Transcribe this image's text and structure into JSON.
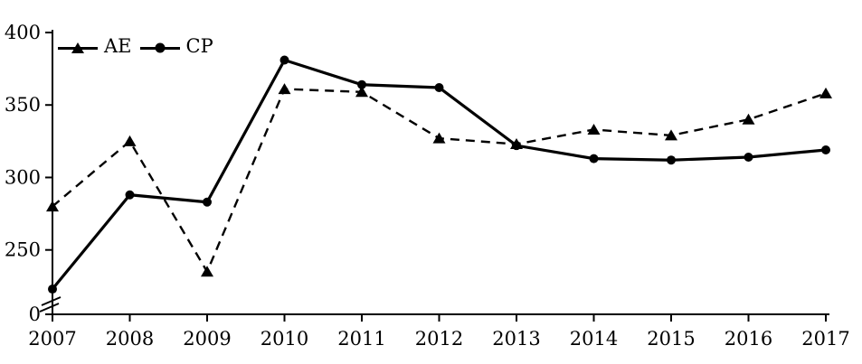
{
  "chart_data": {
    "type": "line",
    "title": "",
    "xlabel": "",
    "ylabel": "",
    "x": [
      2007,
      2008,
      2009,
      2010,
      2011,
      2012,
      2013,
      2014,
      2015,
      2016,
      2017
    ],
    "series": [
      {
        "name": "AE",
        "marker": "triangle",
        "line_style": "dashed",
        "values": [
          280,
          325,
          235,
          361,
          359,
          327,
          323,
          333,
          329,
          340,
          358
        ]
      },
      {
        "name": "CP",
        "marker": "circle",
        "line_style": "solid",
        "values": [
          223,
          288,
          283,
          381,
          364,
          362,
          322,
          313,
          312,
          314,
          319
        ]
      }
    ],
    "y_ticks": [
      400,
      350,
      300,
      250,
      0
    ],
    "x_tick_labels": [
      "2007",
      "2008",
      "2009",
      "2010",
      "2011",
      "2012",
      "2013",
      "2014",
      "2015",
      "2016",
      "2017"
    ],
    "axis_break": true,
    "ylim_display": [
      250,
      400
    ],
    "grid": false,
    "legend_position": "top-left-inside",
    "colors": {
      "line": "#000000",
      "background": "#ffffff"
    }
  },
  "legend": {
    "items": [
      {
        "label": "AE"
      },
      {
        "label": "CP"
      }
    ]
  }
}
